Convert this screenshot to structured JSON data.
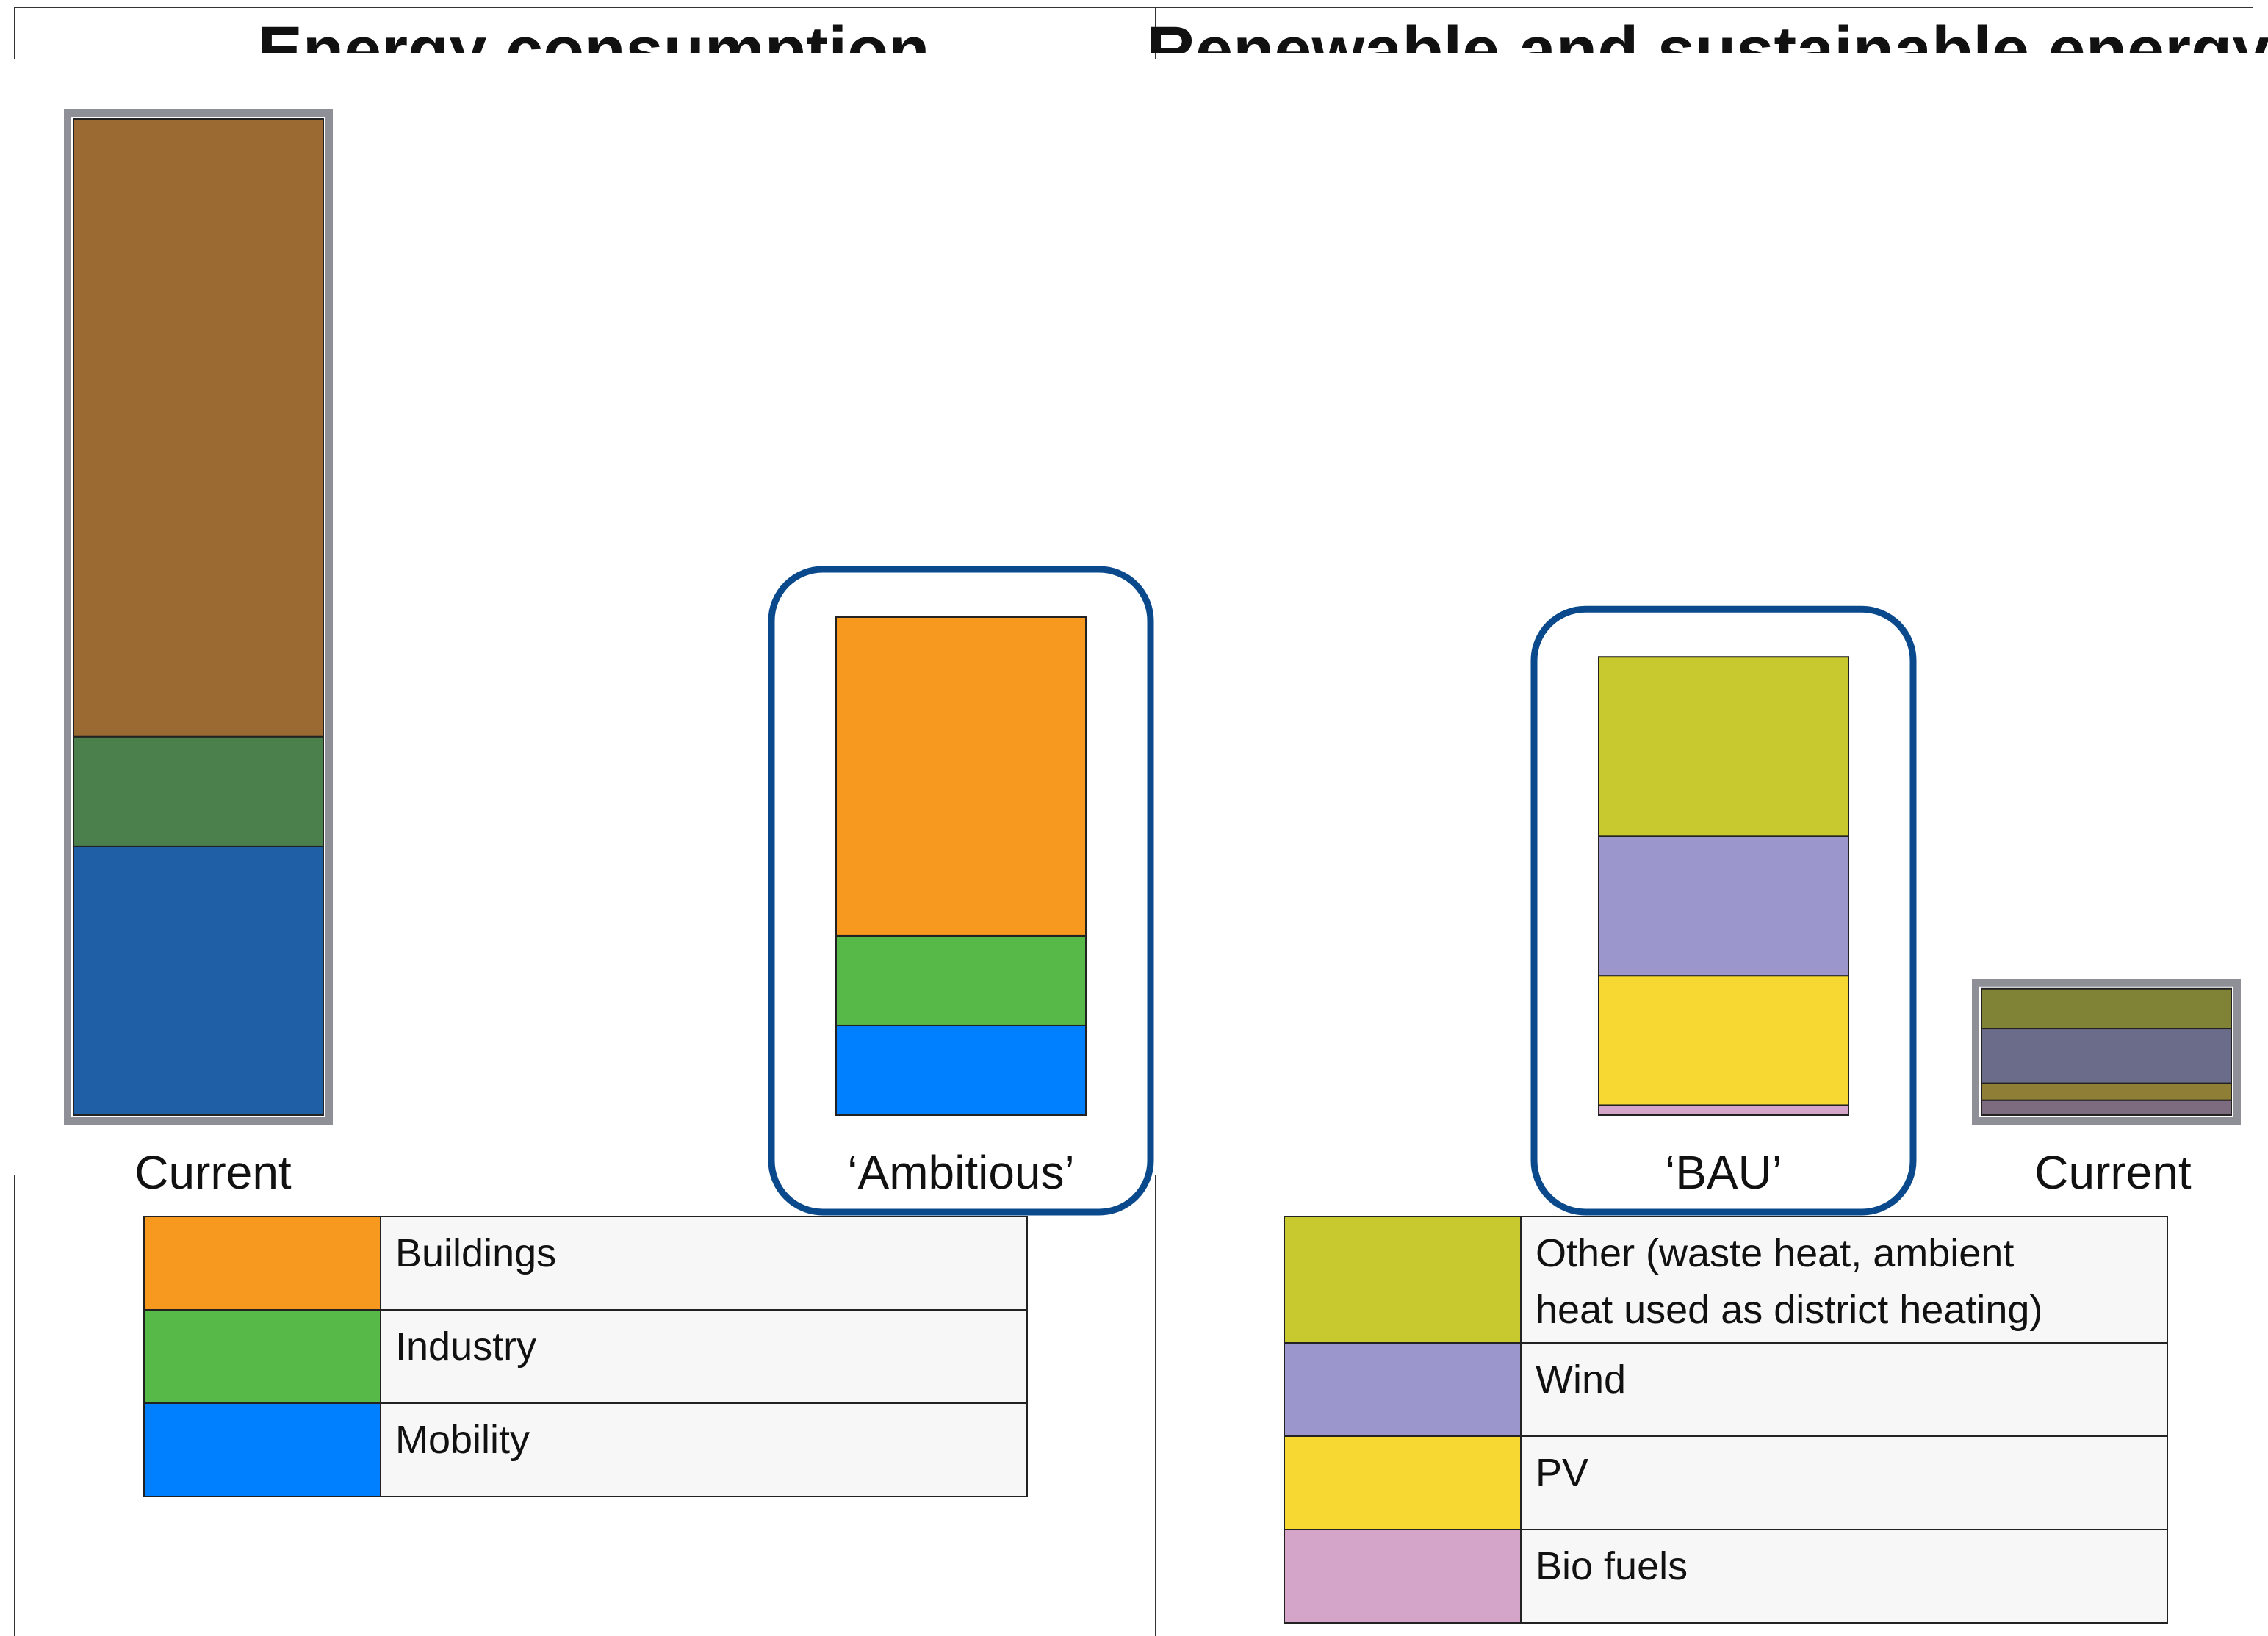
{
  "panels": {
    "left_title": "Energy consumption",
    "right_title": "Renewable and sustainable energy"
  },
  "chart_data": [
    {
      "type": "bar",
      "stacked": true,
      "title": "Energy consumption",
      "categories": [
        "Current",
        "‘Ambitious’"
      ],
      "highlighted": [
        "‘Ambitious’"
      ],
      "series": [
        {
          "name": "Mobility",
          "colors": [
            "#1f5fa6",
            "#0080ff"
          ],
          "values": [
            27,
            9
          ]
        },
        {
          "name": "Industry",
          "colors": [
            "#4b7f4b",
            "#57b948"
          ],
          "values": [
            11,
            9
          ]
        },
        {
          "name": "Buildings",
          "colors": [
            "#9b6a33",
            "#f7991f"
          ],
          "values": [
            62,
            32
          ]
        }
      ],
      "ylim": [
        0,
        100
      ]
    },
    {
      "type": "bar",
      "stacked": true,
      "title": "Renewable and sustainable energy",
      "categories": [
        "‘BAU’",
        "Current"
      ],
      "highlighted": [
        "‘BAU’"
      ],
      "series": [
        {
          "name": "Bio fuels",
          "colors": [
            "#d4a5c9",
            "#7d6b80"
          ],
          "values": [
            1,
            1.5
          ]
        },
        {
          "name": "PV",
          "colors": [
            "#f7d731",
            "#8f7f36"
          ],
          "values": [
            13,
            1.7
          ]
        },
        {
          "name": "Wind",
          "colors": [
            "#9b97cc",
            "#6b6b8a"
          ],
          "values": [
            14,
            5.5
          ]
        },
        {
          "name": "Other (waste heat, ambient heat used as district heating)",
          "colors": [
            "#c8c92e",
            "#808236"
          ],
          "values": [
            18,
            4
          ]
        }
      ],
      "ylim": [
        0,
        100
      ]
    }
  ],
  "legends": {
    "left": [
      {
        "label": "Buildings",
        "color": "#f7991f"
      },
      {
        "label": "Industry",
        "color": "#57b948"
      },
      {
        "label": "Mobility",
        "color": "#0080ff"
      }
    ],
    "right": [
      {
        "label_lines": [
          "Other (waste heat, ambient",
          "heat used as district heating)"
        ],
        "color": "#c8c92e"
      },
      {
        "label_lines": [
          "Wind"
        ],
        "color": "#9b97cc"
      },
      {
        "label_lines": [
          "PV"
        ],
        "color": "#f7d731"
      },
      {
        "label_lines": [
          "Bio fuels"
        ],
        "color": "#d4a5c9"
      }
    ]
  },
  "colors": {
    "highlight_frame": "#0a4a8c",
    "current_frame": "#8f8f97",
    "legend_bg": "#f7f7f7"
  }
}
